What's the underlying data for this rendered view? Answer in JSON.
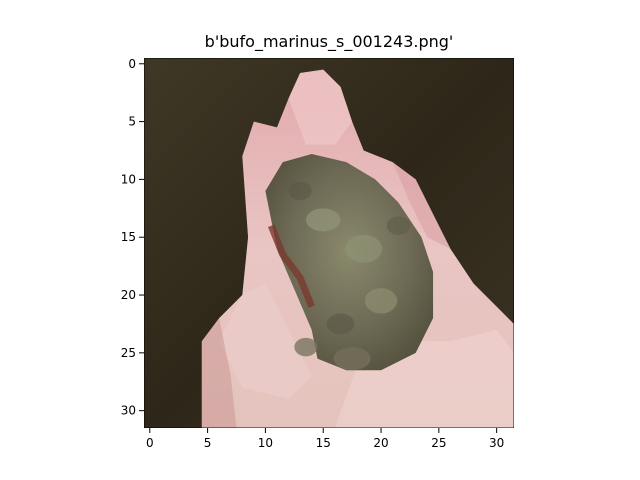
{
  "figure": {
    "title": "b'bufo_marinus_s_001243.png'"
  },
  "image": {
    "subject": "toad-held-in-hand",
    "pixel_grid": 32,
    "colors": {
      "background_dark": "#2a2318",
      "background_mid": "#3a3323",
      "hand_light": "#e8c4c0",
      "hand_pink": "#d9a0a0",
      "hand_shadow": "#b88a82",
      "toad_body": "#6e6a55",
      "toad_highlight": "#8a8a6c",
      "toad_shadow": "#4f4c3c",
      "toad_edge": "#7a3a30"
    }
  },
  "axes": {
    "x_ticks": [
      "0",
      "5",
      "10",
      "15",
      "20",
      "25",
      "30"
    ],
    "y_ticks": [
      "0",
      "5",
      "10",
      "15",
      "20",
      "25",
      "30"
    ]
  }
}
